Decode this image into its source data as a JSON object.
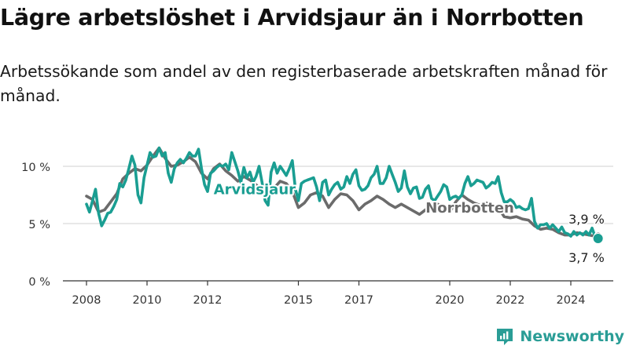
{
  "title": "Lägre arbetslöshet i Arvidsjaur än i Norrbotten",
  "subtitle": "Arbetssökande som andel av den registerbaserade arbetskraften månad för månad.",
  "brand": {
    "name": "Newsworthy",
    "color": "#2a9d96"
  },
  "colors": {
    "arvidsjaur": "#1a9e92",
    "norrbotten": "#6b6b6b",
    "grid": "#d9d9d9",
    "axis": "#333333"
  },
  "chart_data": {
    "type": "line",
    "title": "Lägre arbetslöshet i Arvidsjaur än i Norrbotten",
    "xlabel": "",
    "ylabel": "",
    "x_range": [
      2008.0,
      2024.9
    ],
    "ylim": [
      0,
      12
    ],
    "y_ticks": [
      0,
      5,
      10
    ],
    "y_tick_labels": [
      "0 %",
      "5 %",
      "10 %"
    ],
    "x_ticks": [
      2008,
      2010,
      2012,
      2015,
      2017,
      2020,
      2022,
      2024
    ],
    "x_tick_labels": [
      "2008",
      "2010",
      "2012",
      "2015",
      "2017",
      "2020",
      "2022",
      "2024"
    ],
    "grid": true,
    "series": [
      {
        "name": "Arvidsjaur",
        "label_year": 2012.2,
        "label_value": 8.05,
        "end_label": "3,7 %",
        "points": [
          [
            2008.0,
            6.7
          ],
          [
            2008.1,
            6.0
          ],
          [
            2008.2,
            7.0
          ],
          [
            2008.3,
            8.0
          ],
          [
            2008.4,
            5.9
          ],
          [
            2008.5,
            4.8
          ],
          [
            2008.6,
            5.3
          ],
          [
            2008.7,
            5.9
          ],
          [
            2008.8,
            6.0
          ],
          [
            2008.9,
            6.5
          ],
          [
            2009.0,
            7.1
          ],
          [
            2009.1,
            8.5
          ],
          [
            2009.2,
            8.2
          ],
          [
            2009.3,
            8.8
          ],
          [
            2009.4,
            9.8
          ],
          [
            2009.5,
            10.9
          ],
          [
            2009.6,
            10.1
          ],
          [
            2009.7,
            7.5
          ],
          [
            2009.8,
            6.8
          ],
          [
            2009.9,
            9.0
          ],
          [
            2010.0,
            10.1
          ],
          [
            2010.1,
            11.2
          ],
          [
            2010.2,
            10.8
          ],
          [
            2010.3,
            10.9
          ],
          [
            2010.4,
            11.6
          ],
          [
            2010.5,
            10.9
          ],
          [
            2010.6,
            11.2
          ],
          [
            2010.7,
            9.4
          ],
          [
            2010.8,
            8.6
          ],
          [
            2010.9,
            9.8
          ],
          [
            2011.0,
            10.3
          ],
          [
            2011.1,
            10.6
          ],
          [
            2011.2,
            10.3
          ],
          [
            2011.3,
            10.7
          ],
          [
            2011.4,
            11.2
          ],
          [
            2011.5,
            10.9
          ],
          [
            2011.6,
            10.9
          ],
          [
            2011.7,
            11.5
          ],
          [
            2011.8,
            9.8
          ],
          [
            2011.9,
            8.4
          ],
          [
            2012.0,
            7.8
          ],
          [
            2012.1,
            9.4
          ],
          [
            2012.2,
            9.6
          ],
          [
            2012.3,
            9.9
          ],
          [
            2012.4,
            10.1
          ],
          [
            2012.5,
            10.0
          ],
          [
            2012.6,
            10.2
          ],
          [
            2012.7,
            9.7
          ],
          [
            2012.8,
            11.2
          ],
          [
            2012.9,
            10.4
          ],
          [
            2013.0,
            9.6
          ],
          [
            2013.1,
            8.6
          ],
          [
            2013.2,
            9.9
          ],
          [
            2013.3,
            9.0
          ],
          [
            2013.4,
            9.5
          ],
          [
            2013.5,
            8.6
          ],
          [
            2013.6,
            9.1
          ],
          [
            2013.7,
            10.0
          ],
          [
            2013.8,
            8.6
          ],
          [
            2013.9,
            7.0
          ],
          [
            2014.0,
            6.6
          ],
          [
            2014.1,
            9.5
          ],
          [
            2014.2,
            10.3
          ],
          [
            2014.3,
            9.4
          ],
          [
            2014.4,
            10.0
          ],
          [
            2014.5,
            9.6
          ],
          [
            2014.6,
            9.2
          ],
          [
            2014.7,
            9.8
          ],
          [
            2014.8,
            10.5
          ],
          [
            2014.9,
            8.0
          ],
          [
            2015.0,
            7.0
          ],
          [
            2015.1,
            8.5
          ],
          [
            2015.2,
            8.7
          ],
          [
            2015.3,
            8.8
          ],
          [
            2015.4,
            8.9
          ],
          [
            2015.5,
            9.0
          ],
          [
            2015.6,
            8.2
          ],
          [
            2015.7,
            7.0
          ],
          [
            2015.8,
            8.6
          ],
          [
            2015.9,
            8.8
          ],
          [
            2016.0,
            7.5
          ],
          [
            2016.1,
            8.0
          ],
          [
            2016.2,
            8.4
          ],
          [
            2016.3,
            8.6
          ],
          [
            2016.4,
            8.0
          ],
          [
            2016.5,
            8.2
          ],
          [
            2016.6,
            9.1
          ],
          [
            2016.7,
            8.5
          ],
          [
            2016.8,
            9.3
          ],
          [
            2016.9,
            9.7
          ],
          [
            2017.0,
            8.3
          ],
          [
            2017.1,
            7.9
          ],
          [
            2017.2,
            8.0
          ],
          [
            2017.3,
            8.3
          ],
          [
            2017.4,
            9.0
          ],
          [
            2017.5,
            9.3
          ],
          [
            2017.6,
            10.0
          ],
          [
            2017.7,
            8.5
          ],
          [
            2017.8,
            8.5
          ],
          [
            2017.9,
            9.0
          ],
          [
            2018.0,
            10.0
          ],
          [
            2018.1,
            9.3
          ],
          [
            2018.2,
            8.6
          ],
          [
            2018.3,
            7.8
          ],
          [
            2018.4,
            8.1
          ],
          [
            2018.5,
            9.6
          ],
          [
            2018.6,
            8.2
          ],
          [
            2018.7,
            7.6
          ],
          [
            2018.8,
            8.1
          ],
          [
            2018.9,
            8.2
          ],
          [
            2019.0,
            7.2
          ],
          [
            2019.1,
            7.3
          ],
          [
            2019.2,
            8.0
          ],
          [
            2019.3,
            8.3
          ],
          [
            2019.4,
            7.2
          ],
          [
            2019.5,
            7.0
          ],
          [
            2019.6,
            7.4
          ],
          [
            2019.7,
            7.8
          ],
          [
            2019.8,
            8.4
          ],
          [
            2019.9,
            8.2
          ],
          [
            2020.0,
            7.1
          ],
          [
            2020.1,
            7.3
          ],
          [
            2020.2,
            7.4
          ],
          [
            2020.3,
            7.2
          ],
          [
            2020.4,
            7.5
          ],
          [
            2020.5,
            8.5
          ],
          [
            2020.6,
            9.1
          ],
          [
            2020.7,
            8.3
          ],
          [
            2020.8,
            8.5
          ],
          [
            2020.9,
            8.8
          ],
          [
            2021.0,
            8.7
          ],
          [
            2021.1,
            8.6
          ],
          [
            2021.2,
            8.1
          ],
          [
            2021.3,
            8.3
          ],
          [
            2021.4,
            8.6
          ],
          [
            2021.5,
            8.5
          ],
          [
            2021.6,
            9.1
          ],
          [
            2021.7,
            7.7
          ],
          [
            2021.8,
            6.9
          ],
          [
            2021.9,
            6.9
          ],
          [
            2022.0,
            7.1
          ],
          [
            2022.1,
            6.9
          ],
          [
            2022.2,
            6.4
          ],
          [
            2022.3,
            6.5
          ],
          [
            2022.4,
            6.3
          ],
          [
            2022.5,
            6.2
          ],
          [
            2022.6,
            6.3
          ],
          [
            2022.7,
            7.2
          ],
          [
            2022.8,
            5.2
          ],
          [
            2022.9,
            4.6
          ],
          [
            2023.0,
            4.9
          ],
          [
            2023.1,
            4.9
          ],
          [
            2023.2,
            5.0
          ],
          [
            2023.3,
            4.6
          ],
          [
            2023.4,
            4.9
          ],
          [
            2023.5,
            4.6
          ],
          [
            2023.6,
            4.3
          ],
          [
            2023.7,
            4.7
          ],
          [
            2023.8,
            4.2
          ],
          [
            2023.9,
            4.1
          ],
          [
            2024.0,
            3.9
          ],
          [
            2024.1,
            4.3
          ],
          [
            2024.2,
            4.0
          ],
          [
            2024.3,
            4.2
          ],
          [
            2024.4,
            4.0
          ],
          [
            2024.5,
            4.3
          ],
          [
            2024.6,
            4.0
          ],
          [
            2024.7,
            4.6
          ],
          [
            2024.8,
            3.9
          ],
          [
            2024.9,
            3.7
          ]
        ]
      },
      {
        "name": "Norrbotten",
        "label_year": 2019.2,
        "label_value": 6.45,
        "end_label": "3,9 %",
        "points": [
          [
            2008.0,
            7.4
          ],
          [
            2008.2,
            7.1
          ],
          [
            2008.4,
            6.0
          ],
          [
            2008.6,
            6.2
          ],
          [
            2008.8,
            6.9
          ],
          [
            2009.0,
            7.6
          ],
          [
            2009.2,
            8.9
          ],
          [
            2009.4,
            9.4
          ],
          [
            2009.6,
            9.8
          ],
          [
            2009.8,
            9.6
          ],
          [
            2010.0,
            10.1
          ],
          [
            2010.2,
            10.9
          ],
          [
            2010.4,
            11.6
          ],
          [
            2010.6,
            10.7
          ],
          [
            2010.8,
            10.0
          ],
          [
            2011.0,
            10.1
          ],
          [
            2011.2,
            10.4
          ],
          [
            2011.4,
            10.8
          ],
          [
            2011.6,
            10.4
          ],
          [
            2011.8,
            9.4
          ],
          [
            2012.0,
            8.9
          ],
          [
            2012.2,
            9.8
          ],
          [
            2012.4,
            10.2
          ],
          [
            2012.6,
            9.6
          ],
          [
            2012.8,
            9.2
          ],
          [
            2013.0,
            8.7
          ],
          [
            2013.2,
            9.1
          ],
          [
            2013.4,
            8.8
          ],
          [
            2013.6,
            8.4
          ],
          [
            2013.8,
            7.9
          ],
          [
            2014.0,
            7.7
          ],
          [
            2014.2,
            8.1
          ],
          [
            2014.4,
            8.7
          ],
          [
            2014.6,
            8.5
          ],
          [
            2014.8,
            7.8
          ],
          [
            2015.0,
            6.4
          ],
          [
            2015.2,
            6.8
          ],
          [
            2015.4,
            7.5
          ],
          [
            2015.6,
            7.7
          ],
          [
            2015.8,
            7.4
          ],
          [
            2016.0,
            6.4
          ],
          [
            2016.2,
            7.1
          ],
          [
            2016.4,
            7.6
          ],
          [
            2016.6,
            7.5
          ],
          [
            2016.8,
            7.0
          ],
          [
            2017.0,
            6.2
          ],
          [
            2017.2,
            6.7
          ],
          [
            2017.4,
            7.0
          ],
          [
            2017.6,
            7.4
          ],
          [
            2017.8,
            7.1
          ],
          [
            2018.0,
            6.7
          ],
          [
            2018.2,
            6.4
          ],
          [
            2018.4,
            6.7
          ],
          [
            2018.6,
            6.4
          ],
          [
            2018.8,
            6.1
          ],
          [
            2019.0,
            5.8
          ],
          [
            2019.2,
            6.2
          ],
          [
            2019.4,
            6.5
          ],
          [
            2019.6,
            6.7
          ],
          [
            2019.8,
            6.4
          ],
          [
            2020.0,
            6.0
          ],
          [
            2020.2,
            6.9
          ],
          [
            2020.4,
            7.5
          ],
          [
            2020.6,
            7.1
          ],
          [
            2020.8,
            6.8
          ],
          [
            2021.0,
            6.6
          ],
          [
            2021.2,
            6.8
          ],
          [
            2021.4,
            6.7
          ],
          [
            2021.6,
            6.4
          ],
          [
            2021.8,
            5.6
          ],
          [
            2022.0,
            5.5
          ],
          [
            2022.2,
            5.6
          ],
          [
            2022.4,
            5.4
          ],
          [
            2022.6,
            5.3
          ],
          [
            2022.8,
            4.8
          ],
          [
            2023.0,
            4.5
          ],
          [
            2023.2,
            4.6
          ],
          [
            2023.4,
            4.5
          ],
          [
            2023.6,
            4.2
          ],
          [
            2023.8,
            4.0
          ],
          [
            2024.0,
            4.0
          ],
          [
            2024.2,
            4.2
          ],
          [
            2024.4,
            4.1
          ],
          [
            2024.6,
            4.0
          ],
          [
            2024.8,
            3.9
          ],
          [
            2024.9,
            3.9
          ]
        ]
      }
    ]
  }
}
